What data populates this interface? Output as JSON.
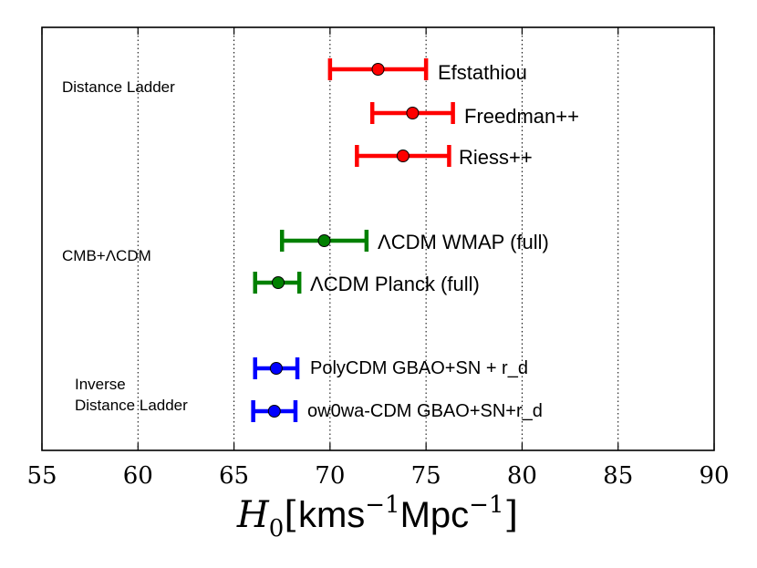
{
  "chart_data": {
    "type": "scatter",
    "subtype": "error-bar",
    "xlabel": {
      "main": "H",
      "sub": "0",
      "unit_open": "[",
      "unit_text1": "kms",
      "unit_exp1": "−1",
      "unit_text2": "Mpc",
      "unit_exp2": "−1",
      "unit_close": "]"
    },
    "xlim": [
      55,
      90
    ],
    "xticks": [
      55,
      60,
      65,
      70,
      75,
      80,
      85,
      90
    ],
    "grid": "vertical-dotted",
    "groups": [
      {
        "id": "distance-ladder",
        "label_lines": [
          "Distance Ladder"
        ],
        "color": "#ff0000"
      },
      {
        "id": "cmb-lcdm",
        "label_lines": [
          "CMB+ΛCDM"
        ],
        "color": "#008000"
      },
      {
        "id": "inverse-distance-ladder",
        "label_lines": [
          "Inverse",
          "Distance Ladder"
        ],
        "color": "#0000ff"
      }
    ],
    "points": [
      {
        "group": "distance-ladder",
        "label": "Efstathiou",
        "value": 72.5,
        "lower": 70.0,
        "upper": 75.0,
        "color": "#ff0000"
      },
      {
        "group": "distance-ladder",
        "label": "Freedman++",
        "value": 74.3,
        "lower": 72.2,
        "upper": 76.4,
        "color": "#ff0000"
      },
      {
        "group": "distance-ladder",
        "label": "Riess++",
        "value": 73.8,
        "lower": 71.4,
        "upper": 76.2,
        "color": "#ff0000"
      },
      {
        "group": "cmb-lcdm",
        "label": "ΛCDM WMAP (full)",
        "value": 69.7,
        "lower": 67.5,
        "upper": 71.9,
        "color": "#008000"
      },
      {
        "group": "cmb-lcdm",
        "label": "ΛCDM Planck (full)",
        "value": 67.3,
        "lower": 66.1,
        "upper": 68.4,
        "color": "#008000"
      },
      {
        "group": "inverse-distance-ladder",
        "label": "PolyCDM GBAO+SN + r_d",
        "value": 67.2,
        "lower": 66.1,
        "upper": 68.3,
        "color": "#0000ff"
      },
      {
        "group": "inverse-distance-ladder",
        "label": "ow0wa-CDM GBAO+SN+r_d",
        "value": 67.1,
        "lower": 66.0,
        "upper": 68.2,
        "color": "#0000ff"
      }
    ]
  }
}
